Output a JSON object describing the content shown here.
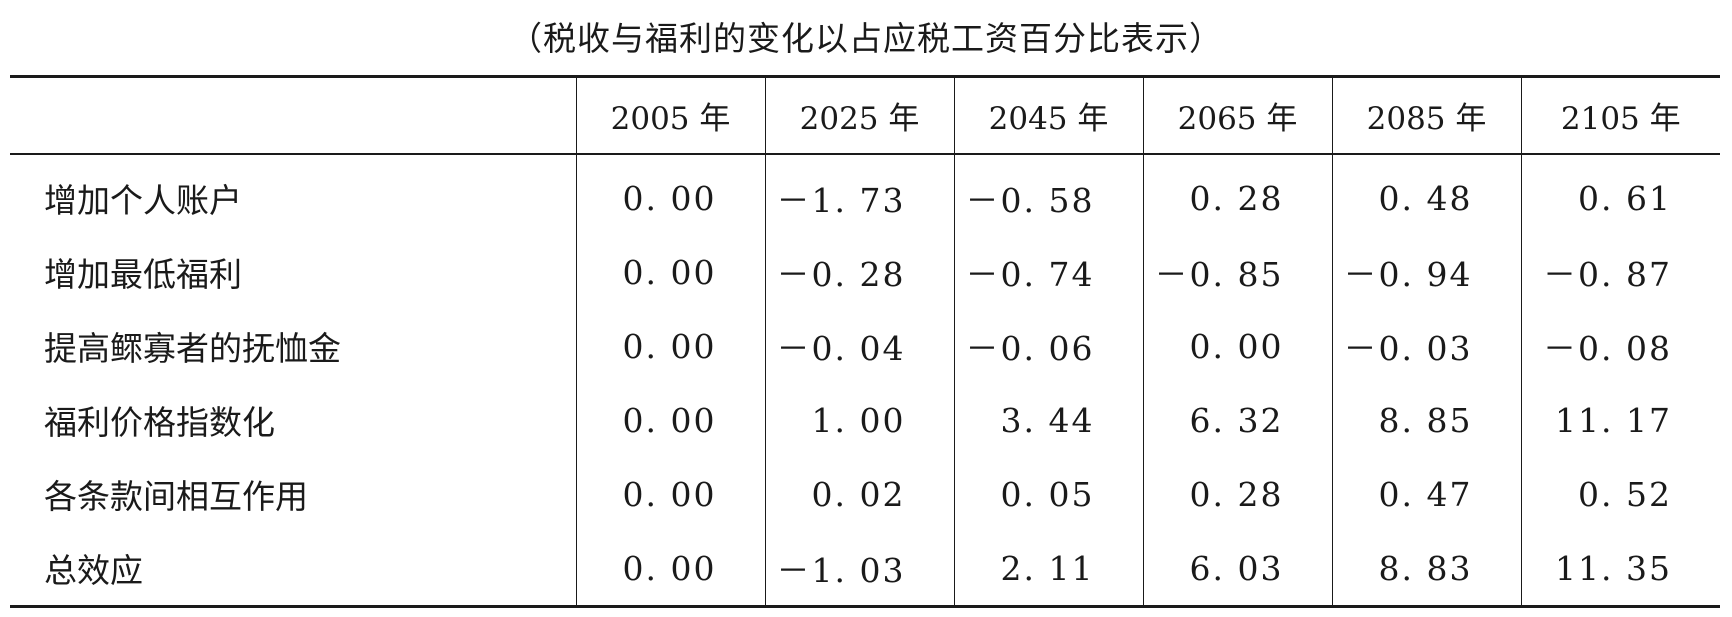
{
  "caption": "（税收与福利的变化以占应税工资百分比表示）",
  "table": {
    "headers": [
      "",
      "2005 年",
      "2025 年",
      "2045 年",
      "2065 年",
      "2085 年",
      "2105 年"
    ],
    "rows": [
      {
        "label": "增加个人账户",
        "values": [
          "0. 00",
          "－1. 73",
          "－0. 58",
          "0. 28",
          "0. 48",
          "0. 61"
        ]
      },
      {
        "label": "增加最低福利",
        "values": [
          "0. 00",
          "－0. 28",
          "－0. 74",
          "－0. 85",
          "－0. 94",
          "－0. 87"
        ]
      },
      {
        "label": "提高鳏寡者的抚恤金",
        "values": [
          "0. 00",
          "－0. 04",
          "－0. 06",
          "0. 00",
          "－0. 03",
          "－0. 08"
        ]
      },
      {
        "label": "福利价格指数化",
        "values": [
          "0. 00",
          "1. 00",
          "3. 44",
          "6. 32",
          "8. 85",
          "11. 17"
        ]
      },
      {
        "label": "各条款间相互作用",
        "values": [
          "0. 00",
          "0. 02",
          "0. 05",
          "0. 28",
          "0. 47",
          "0. 52"
        ]
      },
      {
        "label": "总效应",
        "values": [
          "0. 00",
          "－1. 03",
          "2. 11",
          "6. 03",
          "8. 83",
          "11. 35"
        ]
      }
    ]
  }
}
